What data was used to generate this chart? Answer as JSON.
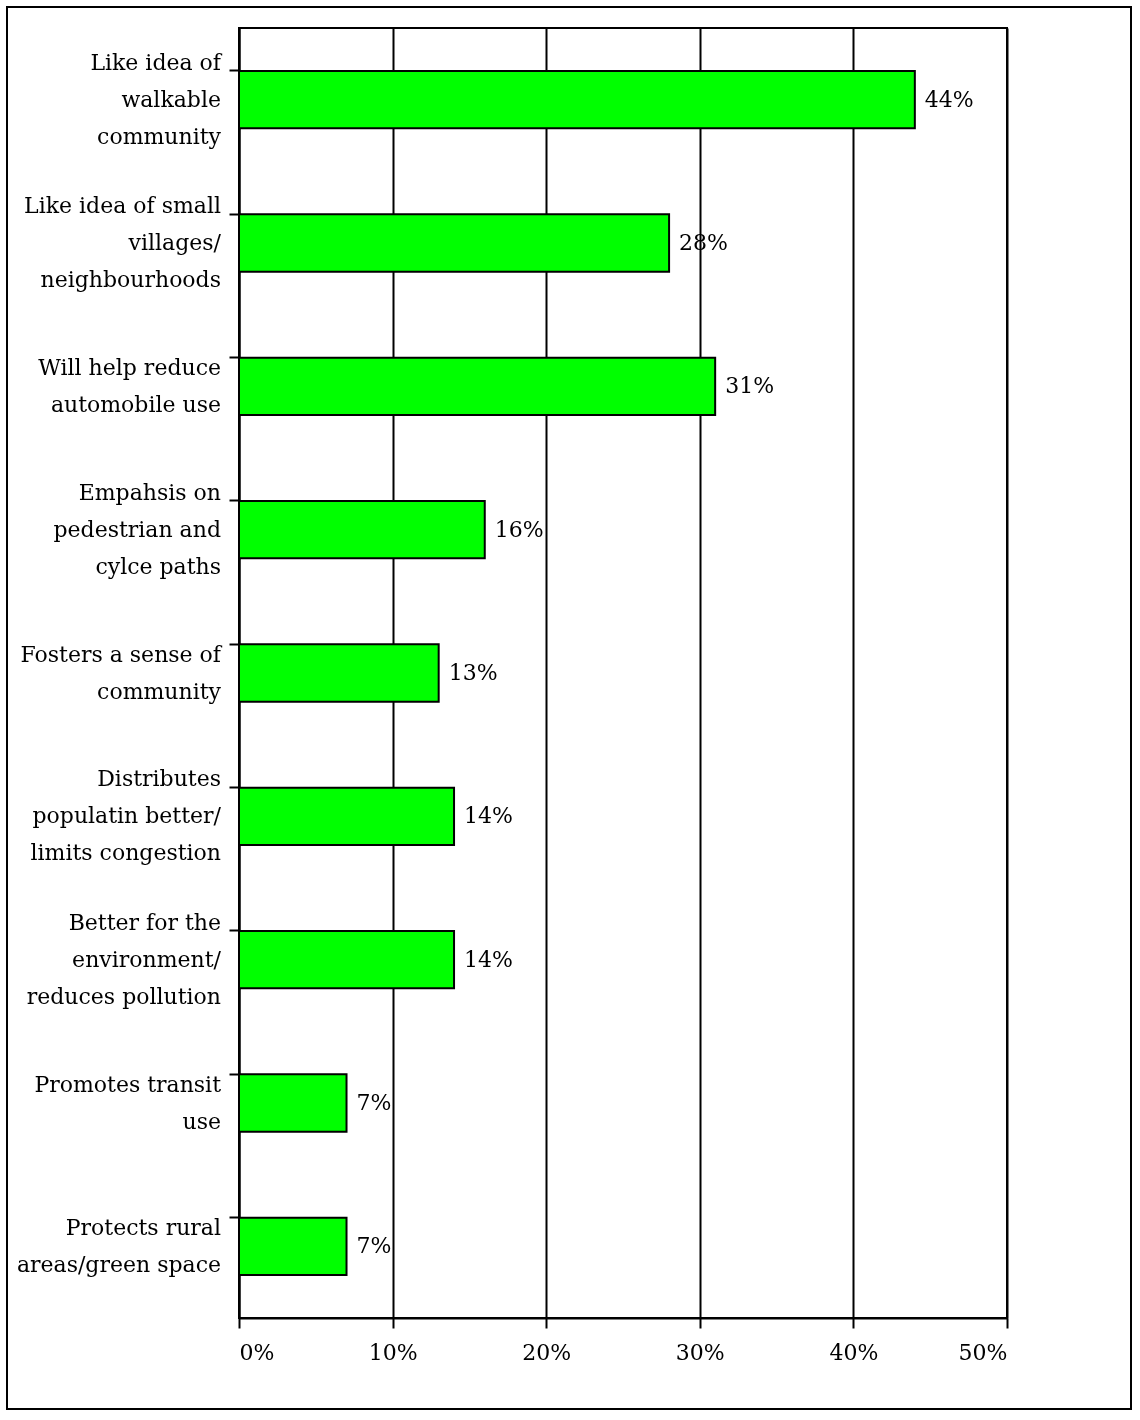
{
  "chart_data": {
    "type": "bar",
    "orientation": "horizontal",
    "categories": [
      "Like idea of walkable community",
      "Like idea of small villages/ neighbourhoods",
      "Will help reduce automobile use",
      "Empahsis on pedestrian and cylce paths",
      "Fosters a sense of community",
      "Distributes populatin better/ limits congestion",
      "Better for the environment/ reduces pollution",
      "Promotes transit use",
      "Protects rural areas/green space"
    ],
    "values": [
      44,
      28,
      31,
      16,
      13,
      14,
      14,
      7,
      7
    ],
    "value_labels": [
      "44%",
      "28%",
      "31%",
      "16%",
      "13%",
      "14%",
      "14%",
      "7%",
      "7%"
    ],
    "color": "#00ff00",
    "xlim": [
      0,
      50
    ],
    "xticks": [
      {
        "value": 0,
        "label": "0%"
      },
      {
        "value": 10,
        "label": "10%"
      },
      {
        "value": 20,
        "label": "20%"
      },
      {
        "value": 30,
        "label": "30%"
      },
      {
        "value": 40,
        "label": "40%"
      },
      {
        "value": 50,
        "label": "50%"
      }
    ],
    "grid": "x"
  }
}
